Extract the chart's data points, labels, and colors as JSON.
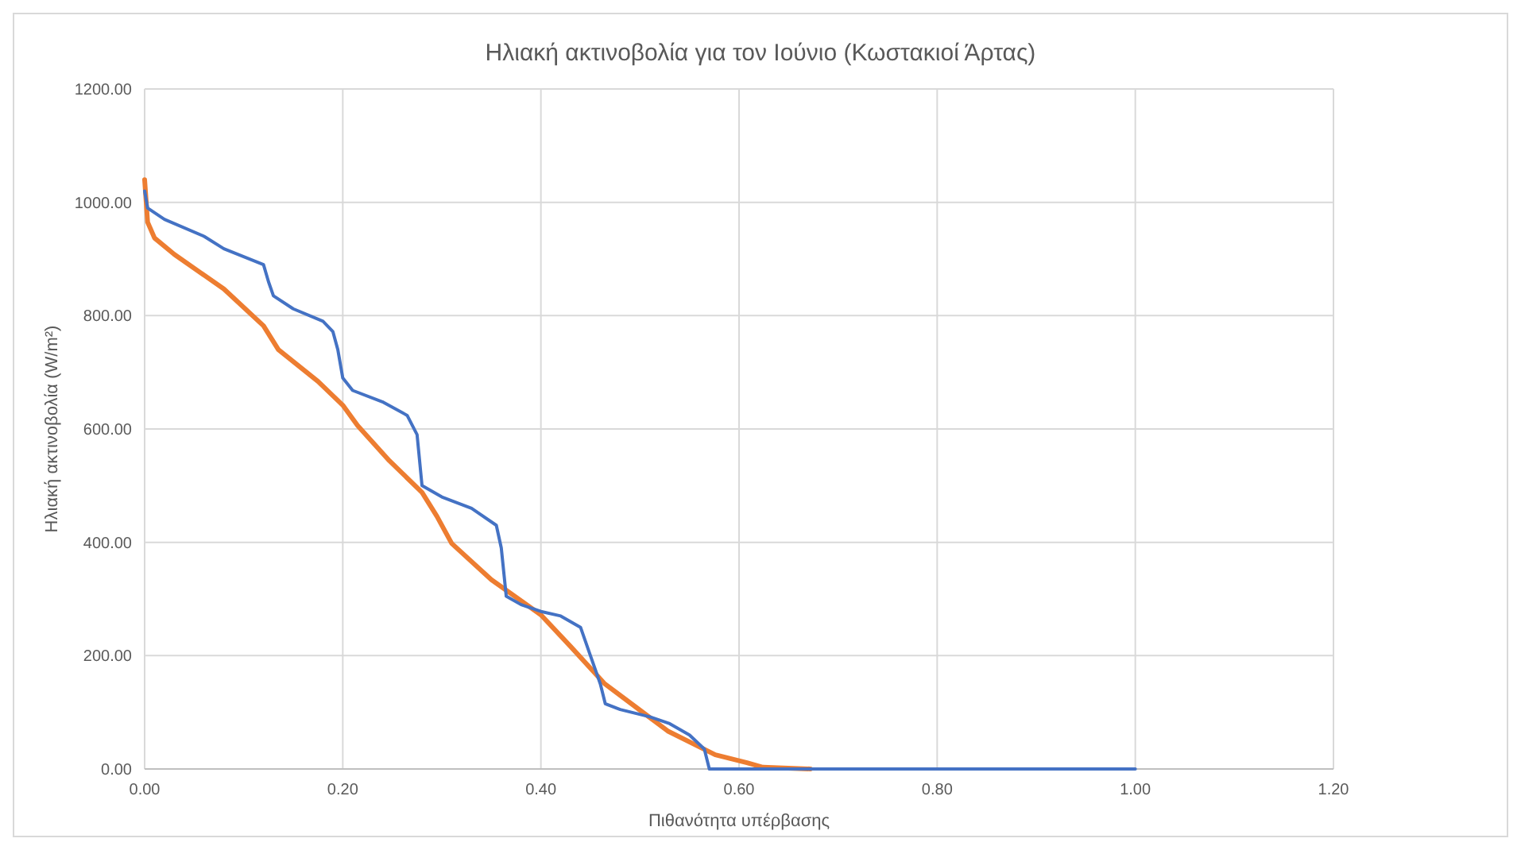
{
  "chart_data": {
    "type": "line",
    "title": "Ηλιακή ακτινοβολία για τον Ιούνιο (Κωστακιοί Άρτας)",
    "xlabel": "Πιθανότητα υπέρβασης",
    "ylabel": "Ηλιακή ακτινοβολία (W/m²)",
    "xlim": [
      0,
      1.2
    ],
    "xticks": [
      {
        "value": 0,
        "label": "0.00"
      },
      {
        "value": 0.2,
        "label": "0.20"
      },
      {
        "value": 0.4,
        "label": "0.40"
      },
      {
        "value": 0.6,
        "label": "0.60"
      },
      {
        "value": 0.8,
        "label": "0.80"
      },
      {
        "value": 1,
        "label": "1.00"
      },
      {
        "value": 1.2,
        "label": "1.20"
      }
    ],
    "ylim": [
      0,
      1200
    ],
    "yticks": [
      {
        "value": 0,
        "label": "0.00"
      },
      {
        "value": 200,
        "label": "200.00"
      },
      {
        "value": 400,
        "label": "400.00"
      },
      {
        "value": 600,
        "label": "600.00"
      },
      {
        "value": 800,
        "label": "800.00"
      },
      {
        "value": 1000,
        "label": "1000.00"
      },
      {
        "value": 1200,
        "label": "1200.00"
      }
    ],
    "grid": true,
    "marker": "none",
    "line_style": "solid",
    "series": [
      {
        "color": "#ed7d31",
        "x": [
          0,
          0.003,
          0.01,
          0.03,
          0.08,
          0.12,
          0.135,
          0.175,
          0.2,
          0.215,
          0.247,
          0.28,
          0.295,
          0.31,
          0.35,
          0.4,
          0.43,
          0.464,
          0.496,
          0.528,
          0.576,
          0.608,
          0.624,
          0.672
        ],
        "values": [
          1040,
          965,
          937,
          908,
          847,
          782,
          740,
          684,
          642,
          606,
          544,
          488,
          446,
          398,
          334,
          272,
          216,
          151,
          109,
          67,
          25,
          11,
          3,
          0
        ]
      },
      {
        "color": "#4472c4",
        "x": [
          0,
          0.003,
          0.02,
          0.06,
          0.08,
          0.12,
          0.125,
          0.13,
          0.15,
          0.18,
          0.19,
          0.195,
          0.2,
          0.21,
          0.24,
          0.265,
          0.275,
          0.28,
          0.3,
          0.33,
          0.355,
          0.36,
          0.365,
          0.38,
          0.4,
          0.42,
          0.44,
          0.45,
          0.46,
          0.465,
          0.48,
          0.51,
          0.53,
          0.55,
          0.565,
          0.57,
          1.0
        ],
        "values": [
          1020,
          990,
          970,
          940,
          918,
          890,
          860,
          835,
          812,
          790,
          772,
          740,
          690,
          668,
          648,
          624,
          590,
          500,
          480,
          460,
          430,
          390,
          305,
          290,
          278,
          270,
          250,
          200,
          150,
          115,
          105,
          92,
          80,
          60,
          35,
          0,
          0
        ]
      }
    ]
  }
}
